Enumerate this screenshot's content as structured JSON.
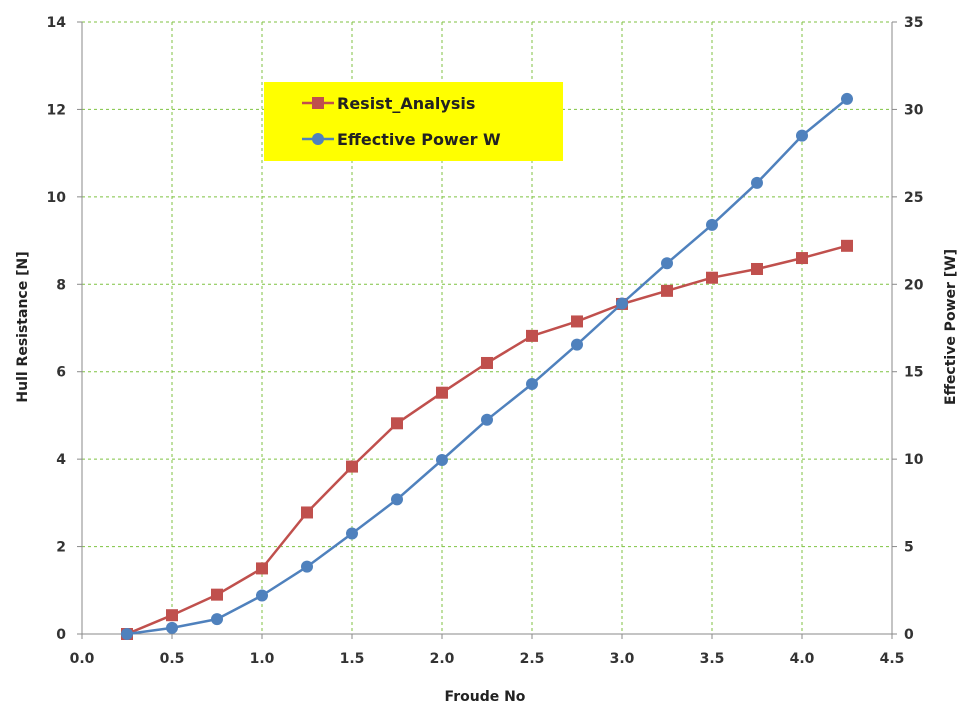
{
  "chart_data": {
    "type": "line",
    "xlabel": "Froude No",
    "ylabel": "Hull Resistance [N]",
    "y2label": "Effective Power [W]",
    "xlim": [
      0,
      4.5
    ],
    "ylim": [
      0,
      14
    ],
    "y2lim": [
      0,
      35
    ],
    "x_ticks": [
      "0.0",
      "0.5",
      "1.0",
      "1.5",
      "2.0",
      "2.5",
      "3.0",
      "3.5",
      "4.0",
      "4.5"
    ],
    "y_ticks": [
      "0",
      "2",
      "4",
      "6",
      "8",
      "10",
      "12",
      "14"
    ],
    "y2_ticks": [
      "0",
      "5",
      "10",
      "15",
      "20",
      "25",
      "30",
      "35"
    ],
    "grid": true,
    "legend_position": "top-left",
    "plot_background": "#ffffff",
    "grid_color": "#7fc241",
    "legend_background": "#ffff00",
    "series": [
      {
        "name": "Resist_Analysis",
        "axis": "left",
        "color": "#c0504d",
        "marker": "square",
        "x": [
          0.25,
          0.5,
          0.75,
          1.0,
          1.25,
          1.5,
          1.75,
          2.0,
          2.25,
          2.5,
          2.75,
          3.0,
          3.25,
          3.5,
          3.75,
          4.0,
          4.25
        ],
        "values": [
          0.0,
          0.43,
          0.9,
          1.5,
          2.78,
          3.83,
          4.82,
          5.52,
          6.2,
          6.82,
          7.15,
          7.55,
          7.85,
          8.15,
          8.35,
          8.6,
          8.88
        ]
      },
      {
        "name": "Effective Power W",
        "axis": "right",
        "color": "#4f81bd",
        "marker": "circle",
        "x": [
          0.25,
          0.5,
          0.75,
          1.0,
          1.25,
          1.5,
          1.75,
          2.0,
          2.25,
          2.5,
          2.75,
          3.0,
          3.25,
          3.5,
          3.75,
          4.0,
          4.25
        ],
        "values": [
          0.0,
          0.35,
          0.85,
          2.2,
          3.85,
          5.75,
          7.7,
          9.95,
          12.25,
          14.3,
          16.55,
          18.9,
          21.2,
          23.4,
          25.8,
          28.5,
          30.6
        ]
      }
    ]
  }
}
